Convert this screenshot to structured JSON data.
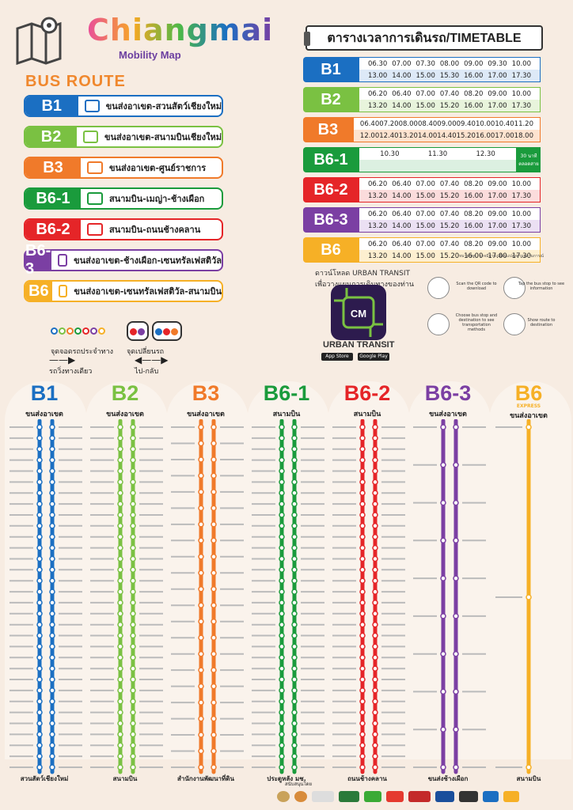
{
  "header": {
    "title": "Chiangmai",
    "subtitle": "Mobility Map",
    "bus_route": "BUS ROUTE"
  },
  "colors": {
    "B1": "#1b6fc2",
    "B2": "#7ac142",
    "B3": "#f07a2a",
    "B6-1": "#1a9b3c",
    "B6-2": "#e52528",
    "B6-3": "#7b3fa3",
    "B6": "#f6b026"
  },
  "routes": [
    {
      "code": "B1",
      "name": "ขนส่งอาเขต-สวนสัตว์เชียงใหม่"
    },
    {
      "code": "B2",
      "name": "ขนส่งอาเขต-สนามบินเชียงใหม่"
    },
    {
      "code": "B3",
      "name": "ขนส่งอาเขต-ศูนย์ราชการ"
    },
    {
      "code": "B6-1",
      "name": "สนามบิน-เมญ่า-ช้างเผือก"
    },
    {
      "code": "B6-2",
      "name": "สนามบิน-ถนนช้างคลาน"
    },
    {
      "code": "B6-3",
      "name": "ขนส่งอาเขต-ช้างเผือก-เซนทรัลเฟสติวัล"
    },
    {
      "code": "B6",
      "name": "ขนส่งอาเขต-เซนทรัลเฟสติวัล-สนามบิน"
    }
  ],
  "legend": {
    "stop": "จุดจอดรถประจำทาง",
    "transfer": "จุดเปลี่ยนรถ",
    "oneway": "รถวิ่งทางเดียว",
    "roundtrip": "ไป-กลับ"
  },
  "timetable": {
    "title": "ตารางเวลาการเดินรถ/TIMETABLE",
    "rows": [
      {
        "code": "B1",
        "r1": [
          "06.30",
          "07.00",
          "07.30",
          "08.00",
          "09.00",
          "09.30",
          "10.00"
        ],
        "r2": [
          "13.00",
          "14.00",
          "15.00",
          "15.30",
          "16.00",
          "17.00",
          "17.30"
        ]
      },
      {
        "code": "B2",
        "r1": [
          "06.20",
          "06.40",
          "07.00",
          "07.40",
          "08.20",
          "09.00",
          "10.00"
        ],
        "r2": [
          "13.20",
          "14.00",
          "15.00",
          "15.20",
          "16.00",
          "17.00",
          "17.30"
        ]
      },
      {
        "code": "B3",
        "r1": [
          "06.40",
          "07.20",
          "08.00",
          "08.40",
          "09.00",
          "09.40",
          "10.00",
          "10.40",
          "11.20"
        ],
        "r2": [
          "12.00",
          "12.40",
          "13.20",
          "14.00",
          "14.40",
          "15.20",
          "16.00",
          "17.00",
          "18.00"
        ]
      },
      {
        "code": "B6-1",
        "r1": [
          "10.30",
          "11.30",
          "12.30"
        ],
        "r2": [],
        "note": "30 นาที ตลอดสาย"
      },
      {
        "code": "B6-2",
        "r1": [
          "06.20",
          "06.40",
          "07.00",
          "07.40",
          "08.20",
          "09.00",
          "10.00"
        ],
        "r2": [
          "13.20",
          "14.00",
          "15.00",
          "15.20",
          "16.00",
          "17.00",
          "17.30"
        ]
      },
      {
        "code": "B6-3",
        "r1": [
          "06.20",
          "06.40",
          "07.00",
          "07.40",
          "08.20",
          "09.00",
          "10.00"
        ],
        "r2": [
          "13.20",
          "14.00",
          "15.00",
          "15.20",
          "16.00",
          "17.00",
          "17.30"
        ]
      },
      {
        "code": "B6",
        "r1": [
          "06.20",
          "06.40",
          "07.00",
          "07.40",
          "08.20",
          "09.00",
          "10.00"
        ],
        "r2": [
          "13.20",
          "14.00",
          "15.00",
          "15.20",
          "16.00",
          "17.00",
          "17.30"
        ]
      }
    ],
    "note": "หมายเหตุ : อาจมีการเปลี่ยนแปลงตามสถานการณ์"
  },
  "app": {
    "download": "ดาวน์โหลด URBAN TRANSIT",
    "download2": "เพื่อวางแผนการเดินทางของท่าน",
    "name": "URBAN TRANSIT",
    "appstore": "App Store",
    "googleplay": "Google Play",
    "steps": [
      "Scan the QR code to download",
      "Tap the bus stop to see information",
      "Choose bus stop and destination to see transportation methods",
      "Show route to destination"
    ]
  },
  "lines": [
    {
      "code": "B1",
      "start": "ขนส่งอาเขต",
      "end": "สวนสัตว์เชียงใหม่"
    },
    {
      "code": "B2",
      "start": "ขนส่งอาเขต",
      "end": "สนามบิน"
    },
    {
      "code": "B3",
      "start": "ขนส่งอาเขต",
      "end": "สำนักงานพัฒนาที่ดิน"
    },
    {
      "code": "B6-1",
      "start": "สนามบิน",
      "end": "ประตูหลัง มช."
    },
    {
      "code": "B6-2",
      "start": "สนามบิน",
      "end": "ถนนช้างคลาน"
    },
    {
      "code": "B6-3",
      "start": "ขนส่งอาเขต",
      "end": "ขนส่งช้างเผือก"
    },
    {
      "code": "B6",
      "sub": "EXPRESS",
      "start": "ขนส่งอาเขต",
      "end": "สนามบิน"
    }
  ],
  "sponsors": "สนับสนุนโดย"
}
